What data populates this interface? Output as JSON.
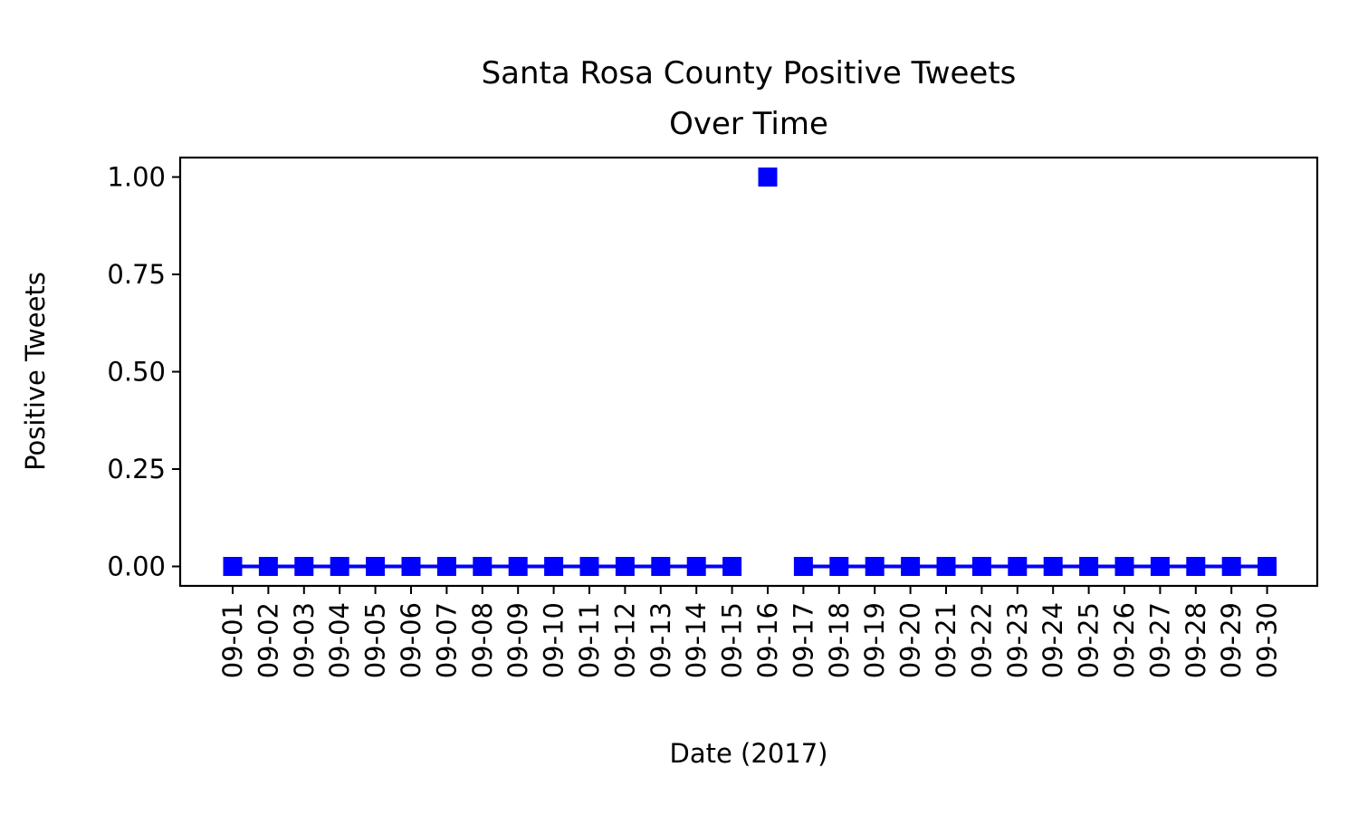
{
  "chart_data": {
    "type": "line",
    "title": "Santa Rosa County Positive Tweets\nOver Time",
    "title_lines": [
      "Santa Rosa County Positive Tweets",
      "Over Time"
    ],
    "xlabel": "Date (2017)",
    "ylabel": "Positive Tweets",
    "ylim": [
      -0.05,
      1.05
    ],
    "y_ticks": [
      0.0,
      0.25,
      0.5,
      0.75,
      1.0
    ],
    "y_tick_labels": [
      "0.00",
      "0.25",
      "0.50",
      "0.75",
      "1.00"
    ],
    "categories": [
      "09-01",
      "09-02",
      "09-03",
      "09-04",
      "09-05",
      "09-06",
      "09-07",
      "09-08",
      "09-09",
      "09-10",
      "09-11",
      "09-12",
      "09-13",
      "09-14",
      "09-15",
      "09-16",
      "09-17",
      "09-18",
      "09-19",
      "09-20",
      "09-21",
      "09-22",
      "09-23",
      "09-24",
      "09-25",
      "09-26",
      "09-27",
      "09-28",
      "09-29",
      "09-30"
    ],
    "series": [
      {
        "values": [
          0,
          0,
          0,
          0,
          0,
          0,
          0,
          0,
          0,
          0,
          0,
          0,
          0,
          0,
          0,
          1,
          0,
          0,
          0,
          0,
          0,
          0,
          0,
          0,
          0,
          0,
          0,
          0,
          0,
          0
        ],
        "segments": [
          [
            0,
            14
          ],
          [
            15,
            15
          ],
          [
            16,
            29
          ]
        ],
        "color": "#0000ff",
        "marker": "square"
      }
    ],
    "ylabel_color": "#0000ff",
    "grid": false,
    "legend": "none"
  }
}
